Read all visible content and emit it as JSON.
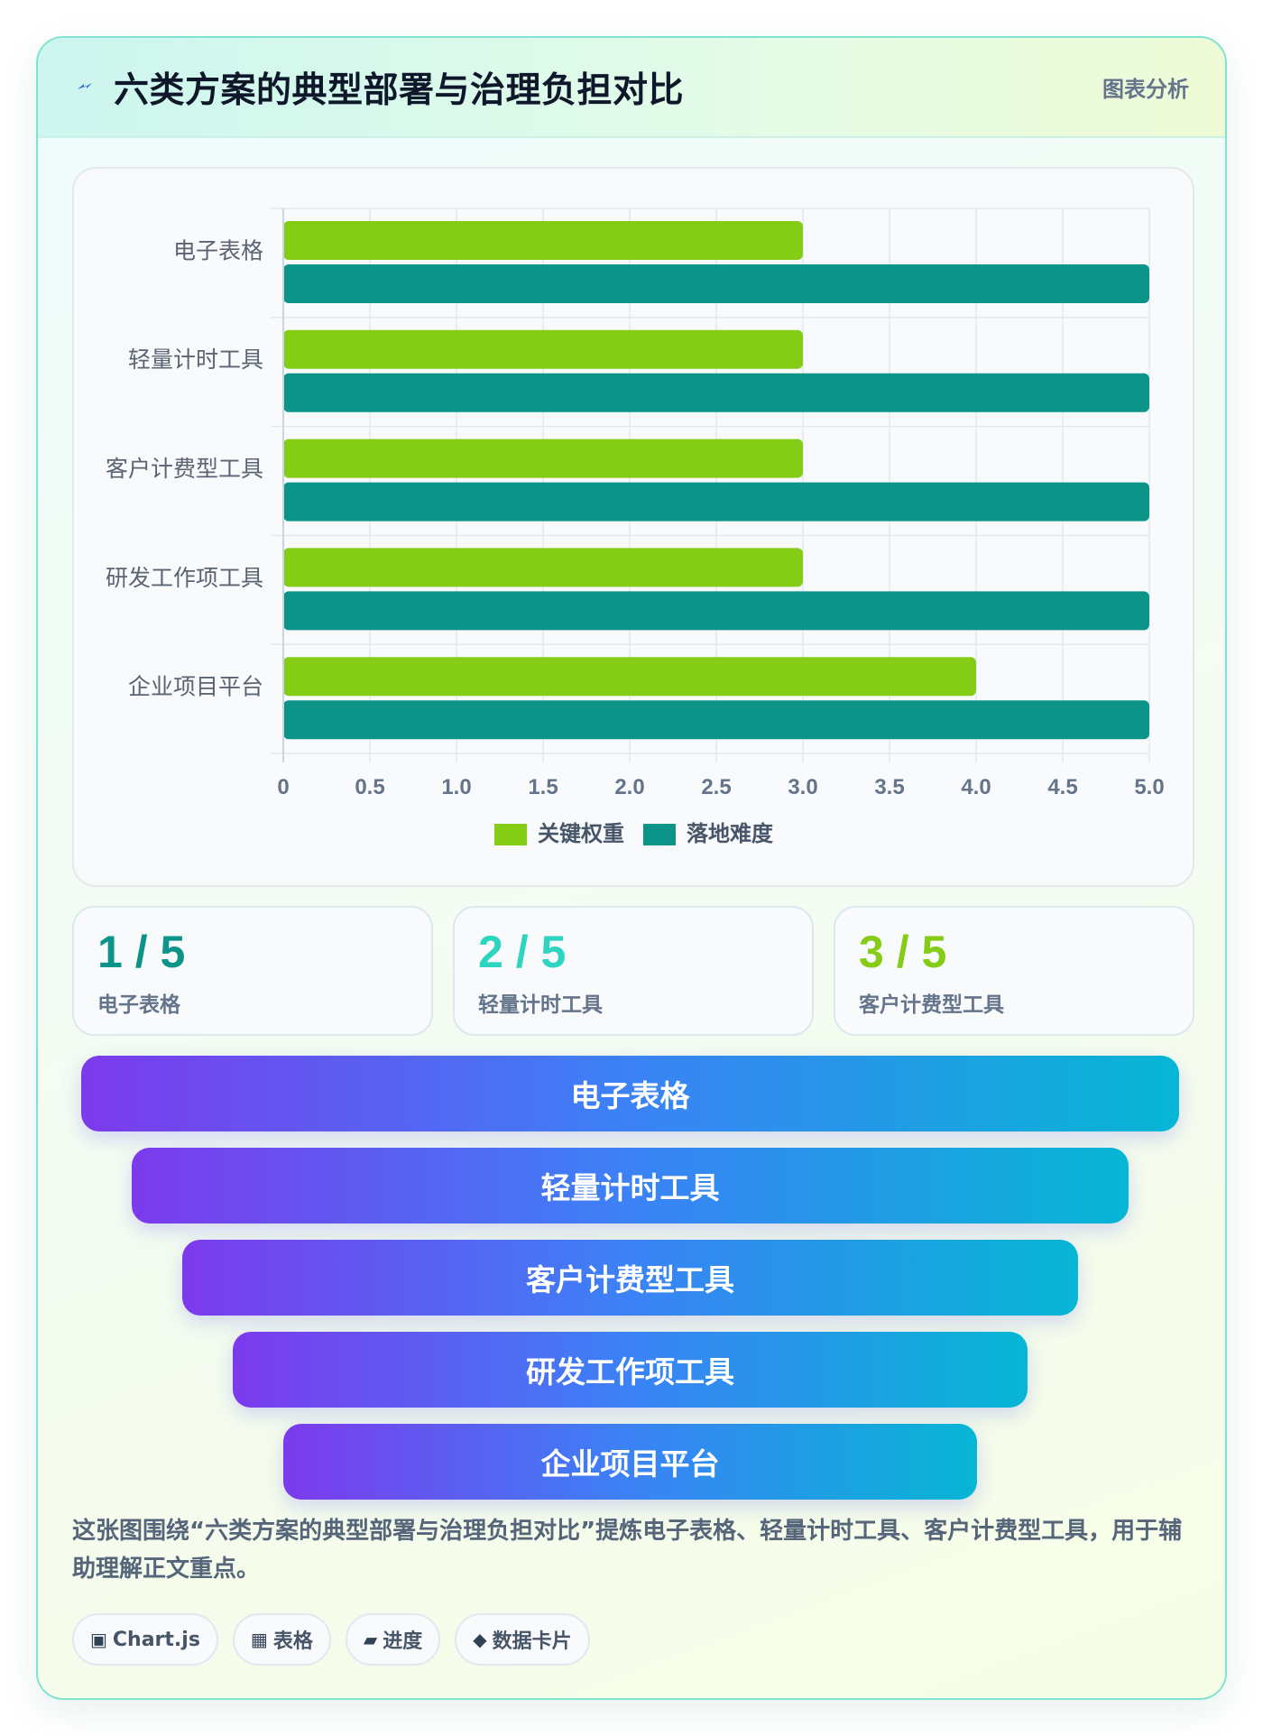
{
  "header": {
    "title": "六类方案的典型部署与治理负担对比",
    "badge": "图表分析"
  },
  "chart_data": {
    "type": "bar",
    "orientation": "horizontal",
    "categories": [
      "电子表格",
      "轻量计时工具",
      "客户计费型工具",
      "研发工作项工具",
      "企业项目平台"
    ],
    "series": [
      {
        "name": "关键权重",
        "color": "#84cc16",
        "values": [
          3.0,
          3.0,
          3.0,
          3.0,
          4.0
        ]
      },
      {
        "name": "落地难度",
        "color": "#0d9488",
        "values": [
          5.0,
          5.0,
          5.0,
          5.0,
          5.0
        ]
      }
    ],
    "xlim": [
      0,
      5
    ],
    "ticks": [
      "0",
      "0.5",
      "1.0",
      "1.5",
      "2.0",
      "2.5",
      "3.0",
      "3.5",
      "4.0",
      "4.5",
      "5.0"
    ],
    "grid": true,
    "legend": "bottom"
  },
  "stats": [
    {
      "value": "1 / 5",
      "label": "电子表格",
      "color": "#0d9488"
    },
    {
      "value": "2 / 5",
      "label": "轻量计时工具",
      "color": "#2dd4bf"
    },
    {
      "value": "3 / 5",
      "label": "客户计费型工具",
      "color": "#84cc16"
    }
  ],
  "funnel": {
    "items": [
      "电子表格",
      "轻量计时工具",
      "客户计费型工具",
      "研发工作项工具",
      "企业项目平台"
    ]
  },
  "description": "这张图围绕“六类方案的典型部署与治理负担对比”提炼电子表格、轻量计时工具、客户计费型工具，用于辅助理解正文重点。",
  "tags": [
    {
      "icon": "▣",
      "icon_name": "chart-icon",
      "label": "Chart.js"
    },
    {
      "icon": "▦",
      "icon_name": "table-icon",
      "label": "表格"
    },
    {
      "icon": "▰",
      "icon_name": "progress-icon",
      "label": "进度"
    },
    {
      "icon": "◆",
      "icon_name": "diamond-icon",
      "label": "数据卡片"
    }
  ]
}
